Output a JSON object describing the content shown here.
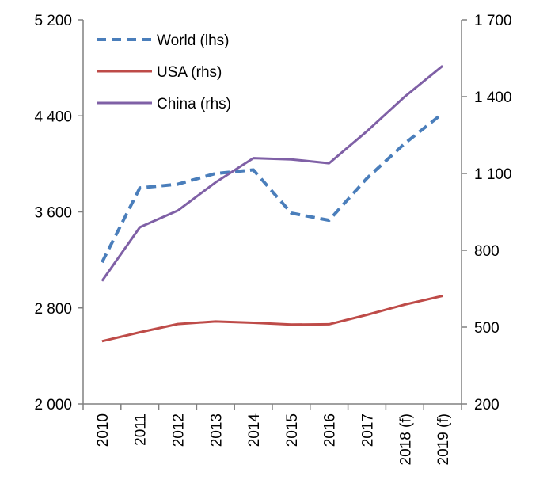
{
  "chart_data": {
    "type": "line",
    "title": "",
    "categories": [
      "2010",
      "2011",
      "2012",
      "2013",
      "2014",
      "2015",
      "2016",
      "2017",
      "2018 (f)",
      "2019 (f)"
    ],
    "y_left": {
      "label": "",
      "range": [
        2000,
        5200
      ],
      "ticks": [
        2000,
        2800,
        3600,
        4400,
        5200
      ],
      "tick_labels": [
        "2 000",
        "2 800",
        "3 600",
        "4 400",
        "5 200"
      ]
    },
    "y_right": {
      "label": "",
      "range": [
        200,
        1700
      ],
      "ticks": [
        200,
        500,
        800,
        1100,
        1400,
        1700
      ],
      "tick_labels": [
        "200",
        "500",
        "800",
        "1 100",
        "1 400",
        "1 700"
      ]
    },
    "series": [
      {
        "name": "World (lhs)",
        "axis": "left",
        "style": "dashed",
        "color": "#4A7EBB",
        "values": [
          3180,
          3800,
          3830,
          3920,
          3950,
          3590,
          3530,
          3880,
          4170,
          4420
        ]
      },
      {
        "name": "USA (rhs)",
        "axis": "right",
        "style": "solid",
        "color": "#BE4B48",
        "values": [
          445,
          480,
          512,
          522,
          517,
          510,
          511,
          548,
          588,
          622
        ]
      },
      {
        "name": "China (rhs)",
        "axis": "right",
        "style": "solid",
        "color": "#7F60A6",
        "values": [
          680,
          890,
          955,
          1065,
          1160,
          1155,
          1140,
          1265,
          1400,
          1520
        ]
      }
    ],
    "legend_position": "top-left",
    "grid": false
  }
}
